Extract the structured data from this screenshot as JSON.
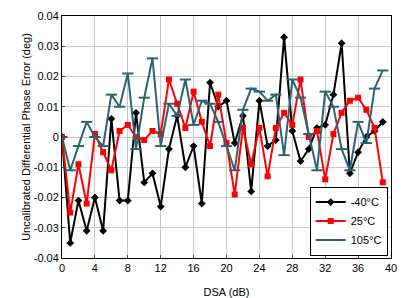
{
  "chart_data": {
    "type": "line",
    "x_label": "DSA (dB)",
    "y_label": "Uncalibrated Differential Phase Error (deg)",
    "x": [
      0,
      1,
      2,
      3,
      4,
      5,
      6,
      7,
      8,
      9,
      10,
      11,
      12,
      13,
      14,
      15,
      16,
      17,
      18,
      19,
      20,
      21,
      22,
      23,
      24,
      25,
      26,
      27,
      28,
      29,
      30,
      31,
      32,
      33,
      34,
      35,
      36,
      37,
      38,
      39
    ],
    "series": [
      {
        "name": "-40°C",
        "color": "#000000",
        "marker": "diamond",
        "values": [
          0,
          -0.035,
          -0.021,
          -0.031,
          -0.02,
          -0.031,
          0.006,
          -0.021,
          -0.021,
          0.008,
          -0.015,
          -0.012,
          -0.023,
          -0.004,
          0.007,
          -0.01,
          -0.003,
          -0.022,
          0.018,
          0.01,
          0.012,
          -0.002,
          0.007,
          -0.018,
          0.012,
          -0.003,
          -0.001,
          0.033,
          0.002,
          -0.008,
          -0.004,
          0.003,
          0.004,
          0.014,
          0.031,
          -0.012,
          -0.005,
          0.0,
          0.002,
          0.005
        ]
      },
      {
        "name": "25°C",
        "color": "#ff0000",
        "marker": "square",
        "values": [
          0,
          -0.025,
          -0.009,
          -0.022,
          0.001,
          -0.005,
          -0.011,
          0.002,
          0.004,
          0.0,
          -0.001,
          0.002,
          0.001,
          0.019,
          0.011,
          0.003,
          0.015,
          0.005,
          -0.003,
          0.014,
          -0.002,
          -0.019,
          0.003,
          -0.009,
          0.003,
          -0.013,
          0.003,
          0.008,
          0.004,
          0.019,
          0.0,
          0.002,
          -0.014,
          0.001,
          0.008,
          0.012,
          0.013,
          0.009,
          0.003,
          -0.015
        ]
      },
      {
        "name": "105°C",
        "color": "#2a6373",
        "marker": "line-ew",
        "values": [
          0,
          -0.011,
          -0.003,
          0.005,
          0.0,
          -0.003,
          0.014,
          0.01,
          0.021,
          -0.004,
          0.013,
          0.026,
          -0.003,
          0.011,
          0.007,
          0.019,
          0.004,
          0.012,
          0.011,
          0.005,
          -0.003,
          -0.011,
          0.009,
          0.016,
          0.015,
          0.012,
          0.014,
          -0.006,
          0.019,
          0.013,
          0.001,
          -0.011,
          0.015,
          0.01,
          -0.004,
          -0.011,
          0.005,
          -0.002,
          0.016,
          0.022
        ]
      }
    ],
    "xlim": [
      0,
      40
    ],
    "xticks": [
      0,
      4,
      8,
      12,
      16,
      20,
      24,
      28,
      32,
      36,
      40
    ],
    "ylim": [
      -0.04,
      0.04
    ],
    "yticks": [
      -0.04,
      -0.03,
      -0.02,
      -0.01,
      0,
      0.01,
      0.02,
      0.03,
      0.04
    ],
    "grid": true,
    "legend": "bottom right"
  }
}
